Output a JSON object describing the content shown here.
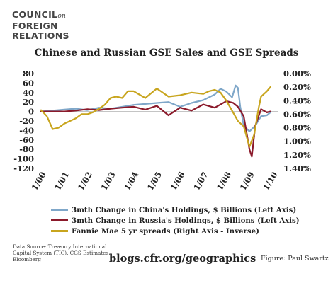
{
  "logo": {
    "line1_a": "COUNCIL",
    "line1_b": "on",
    "line2": "FOREIGN",
    "line3": "RELATIONS"
  },
  "footer": {
    "source": "Data Source: Treasury International Capital System (TIC), CGS Estimates, Bloomberg",
    "site": "blogs.cfr.org/geographics",
    "credit": "Figure: Paul Swartz"
  },
  "chart_data": {
    "type": "line",
    "title": "Chinese and Russian GSE Sales and GSE Spreads",
    "xlabel": "",
    "ylabel": "",
    "x_ticks": [
      "1/00",
      "1/01",
      "1/02",
      "1/03",
      "1/04",
      "1/05",
      "1/06",
      "1/07",
      "1/08",
      "1/09",
      "1/10"
    ],
    "y_left_ticks": [
      "80",
      "60",
      "40",
      "20",
      "0",
      "-20",
      "-40",
      "-60",
      "-80",
      "-100",
      "-120"
    ],
    "y_left_lim": [
      -120,
      80
    ],
    "y_right_ticks": [
      "0.00%",
      "0.20%",
      "0.40%",
      "0.60%",
      "0.80%",
      "1.00%",
      "1.20%",
      "1.40%"
    ],
    "y_right_lim": [
      1.4,
      0.0
    ],
    "grid": false,
    "legend_position": "bottom",
    "series": [
      {
        "name": "3mth Change in China's Holdings, $ Billions (Left Axis)",
        "axis": "left",
        "color": "#7fa7c9",
        "x": [
          2000.0,
          2000.5,
          2001.0,
          2001.5,
          2002.0,
          2002.5,
          2003.0,
          2003.5,
          2004.0,
          2004.5,
          2005.0,
          2005.5,
          2006.0,
          2006.5,
          2007.0,
          2007.25,
          2007.5,
          2007.75,
          2008.0,
          2008.25,
          2008.4,
          2008.5,
          2008.6,
          2008.75,
          2009.0,
          2009.25,
          2009.5,
          2009.75,
          2009.9
        ],
        "values": [
          0,
          2,
          4,
          6,
          3,
          8,
          6,
          10,
          14,
          16,
          18,
          20,
          10,
          18,
          24,
          30,
          36,
          48,
          42,
          30,
          55,
          50,
          10,
          -30,
          -42,
          -30,
          -10,
          -8,
          -2
        ]
      },
      {
        "name": "3mth Change in Russia's Holdings, $ Billions (Left Axis)",
        "axis": "left",
        "color": "#8b1a2b",
        "x": [
          2000.0,
          2000.5,
          2001.0,
          2001.5,
          2002.0,
          2002.5,
          2003.0,
          2003.5,
          2004.0,
          2004.5,
          2005.0,
          2005.5,
          2006.0,
          2006.5,
          2007.0,
          2007.5,
          2008.0,
          2008.3,
          2008.5,
          2008.75,
          2009.0,
          2009.1,
          2009.25,
          2009.5,
          2009.75,
          2009.9
        ],
        "values": [
          0,
          0,
          0,
          2,
          5,
          3,
          6,
          8,
          10,
          4,
          12,
          -8,
          8,
          2,
          15,
          8,
          22,
          18,
          10,
          -10,
          -80,
          -95,
          -30,
          5,
          -2,
          0
        ]
      },
      {
        "name": "Fannie Mae 5 yr spreads (Right Axis - Inverse)",
        "axis": "right",
        "color": "#c8a51e",
        "x": [
          2000.0,
          2000.25,
          2000.5,
          2000.75,
          2001.0,
          2001.25,
          2001.5,
          2001.75,
          2002.0,
          2002.25,
          2002.5,
          2002.75,
          2003.0,
          2003.25,
          2003.5,
          2003.75,
          2004.0,
          2004.5,
          2005.0,
          2005.5,
          2006.0,
          2006.5,
          2007.0,
          2007.25,
          2007.5,
          2007.75,
          2008.0,
          2008.25,
          2008.5,
          2008.75,
          2009.0,
          2009.2,
          2009.4,
          2009.5,
          2009.75,
          2009.9
        ],
        "values": [
          0.54,
          0.63,
          0.82,
          0.8,
          0.74,
          0.7,
          0.66,
          0.6,
          0.6,
          0.57,
          0.52,
          0.46,
          0.36,
          0.34,
          0.36,
          0.26,
          0.26,
          0.36,
          0.22,
          0.34,
          0.32,
          0.28,
          0.3,
          0.26,
          0.24,
          0.28,
          0.4,
          0.55,
          0.7,
          0.78,
          1.08,
          0.9,
          0.5,
          0.34,
          0.26,
          0.2
        ]
      }
    ]
  }
}
